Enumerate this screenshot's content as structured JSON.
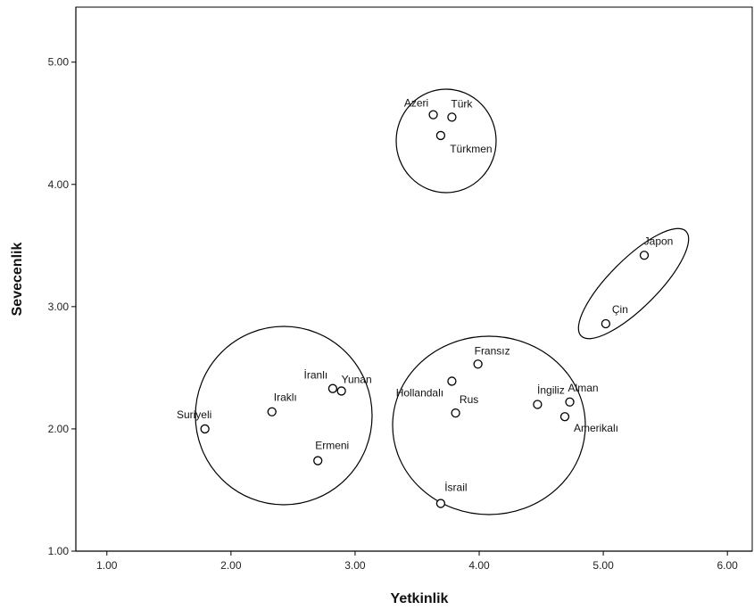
{
  "chart_data": {
    "type": "scatter",
    "title": "",
    "xlabel": "Yetkinlik",
    "ylabel": "Sevecenlik",
    "xlim": [
      0.75,
      6.2
    ],
    "ylim": [
      1.0,
      5.45
    ],
    "xticks": [
      "1.00",
      "2.00",
      "3.00",
      "4.00",
      "5.00",
      "6.00"
    ],
    "yticks": [
      "1.00",
      "2.00",
      "3.00",
      "4.00",
      "5.00"
    ],
    "grid": false,
    "points": [
      {
        "label": "Azeri",
        "x": 3.63,
        "y": 4.57
      },
      {
        "label": "Türk",
        "x": 3.78,
        "y": 4.55
      },
      {
        "label": "Türkmen",
        "x": 3.69,
        "y": 4.4
      },
      {
        "label": "Japon",
        "x": 5.33,
        "y": 3.42
      },
      {
        "label": "Çin",
        "x": 5.02,
        "y": 2.86
      },
      {
        "label": "Fransız",
        "x": 3.99,
        "y": 2.53
      },
      {
        "label": "Hollandalı",
        "x": 3.78,
        "y": 2.39
      },
      {
        "label": "Rus",
        "x": 3.81,
        "y": 2.13
      },
      {
        "label": "İngiliz",
        "x": 4.47,
        "y": 2.2
      },
      {
        "label": "Alman",
        "x": 4.73,
        "y": 2.22
      },
      {
        "label": "Amerikalı",
        "x": 4.69,
        "y": 2.1
      },
      {
        "label": "İsrail",
        "x": 3.69,
        "y": 1.39
      },
      {
        "label": "İranlı",
        "x": 2.82,
        "y": 2.33
      },
      {
        "label": "Yunan",
        "x": 2.89,
        "y": 2.31
      },
      {
        "label": "Iraklı",
        "x": 2.33,
        "y": 2.14
      },
      {
        "label": "Suriyeli",
        "x": 1.79,
        "y": 2.0
      },
      {
        "label": "Ermeni",
        "x": 2.7,
        "y": 1.74
      }
    ],
    "clusters": [
      {
        "members": [
          "Azeri",
          "Türk",
          "Türkmen"
        ]
      },
      {
        "members": [
          "Japon",
          "Çin"
        ]
      },
      {
        "members": [
          "Fransız",
          "Hollandalı",
          "Rus",
          "İngiliz",
          "Alman",
          "Amerikalı",
          "İsrail"
        ]
      },
      {
        "members": [
          "İranlı",
          "Yunan",
          "Iraklı",
          "Suriyeli",
          "Ermeni"
        ]
      }
    ]
  }
}
